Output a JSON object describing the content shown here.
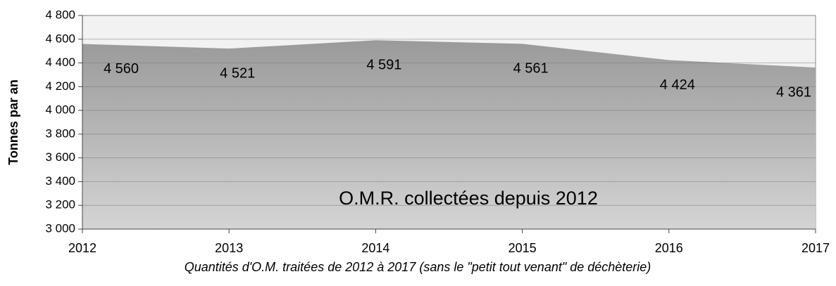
{
  "chart_data": {
    "type": "area",
    "title": "O.M.R. collectées depuis 2012",
    "caption": "Quantités d'O.M. traitées de 2012 à 2017 (sans le \"petit tout venant\" de déchèterie)",
    "y_label": "Tonnes par an",
    "x": [
      2012,
      2013,
      2014,
      2015,
      2016,
      2017
    ],
    "xlim": [
      2012,
      2017
    ],
    "xticks": [
      2012,
      2013,
      2014,
      2015,
      2016,
      2017
    ],
    "values": [
      4560,
      4521,
      4591,
      4561,
      4424,
      4361
    ],
    "value_labels": [
      "4 560",
      "4 521",
      "4 591",
      "4 561",
      "4 424",
      "4 361"
    ],
    "color": "#a6a6a6",
    "ylim": [
      3000,
      4800
    ],
    "yticks": [
      {
        "value": 3000,
        "label": "3 000"
      },
      {
        "value": 3200,
        "label": "3 200"
      },
      {
        "value": 3400,
        "label": "3 400"
      },
      {
        "value": 3600,
        "label": "3 600"
      },
      {
        "value": 3800,
        "label": "3 800"
      },
      {
        "value": 4000,
        "label": "4 000"
      },
      {
        "value": 4200,
        "label": "4 200"
      },
      {
        "value": 4400,
        "label": "4 400"
      },
      {
        "value": 4600,
        "label": "4 600"
      },
      {
        "value": 4800,
        "label": "4 800"
      }
    ],
    "grid": true
  }
}
